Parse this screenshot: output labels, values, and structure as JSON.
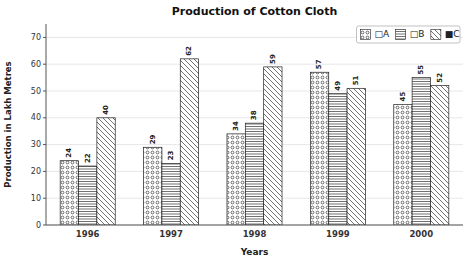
{
  "chart_data": {
    "type": "bar",
    "title": "Production of Cotton Cloth",
    "xlabel": "Years",
    "ylabel": "Production in Lakh Metres",
    "categories": [
      "1996",
      "1997",
      "1998",
      "1999",
      "2000"
    ],
    "series": [
      {
        "name": "□A",
        "color": "#ffffff",
        "values": [
          24,
          29,
          34,
          57,
          45
        ]
      },
      {
        "name": "□B",
        "color": "#ffffff",
        "values": [
          22,
          23,
          38,
          49,
          55
        ]
      },
      {
        "name": "■C",
        "color": "#ffffff",
        "values": [
          40,
          62,
          59,
          51,
          52
        ]
      }
    ],
    "ylim": [
      0,
      75
    ],
    "yticks": [
      0,
      10,
      20,
      30,
      40,
      50,
      60,
      70
    ],
    "grid": true,
    "legend": "upper right",
    "data_labels": true
  }
}
